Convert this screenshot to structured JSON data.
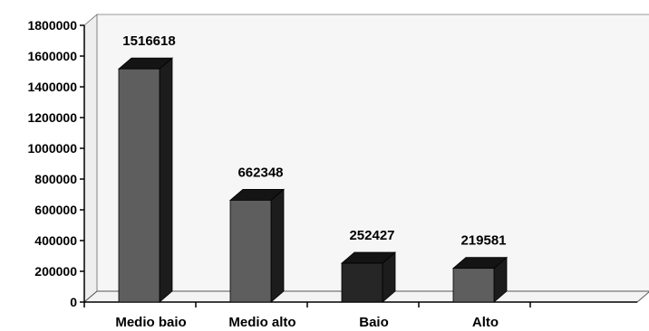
{
  "chart_data": {
    "type": "bar",
    "categories": [
      "Medio baio",
      "Medio alto",
      "Baio",
      "Alto"
    ],
    "values": [
      1516618,
      662348,
      252427,
      219581
    ],
    "data_labels": [
      "1516618",
      "662348",
      "252427",
      "219581"
    ],
    "ylim": [
      0,
      1800000
    ],
    "yticks": [
      0,
      200000,
      400000,
      600000,
      800000,
      1000000,
      1200000,
      1400000,
      1600000,
      1800000
    ],
    "ytick_labels": [
      "0",
      "200000",
      "400000",
      "600000",
      "800000",
      "1000000",
      "1200000",
      "1400000",
      "1600000",
      "1800000"
    ],
    "grid": false,
    "style": "3d-column",
    "colors": {
      "front": "#5e5e5e",
      "side": "#1c1c1c",
      "top": "#141414",
      "front_dark": "#262626",
      "back_wall": "#f6f6f6",
      "floor": "#f3f3f3",
      "axis": "#000000"
    },
    "dark_categories": [
      "Baio"
    ]
  }
}
